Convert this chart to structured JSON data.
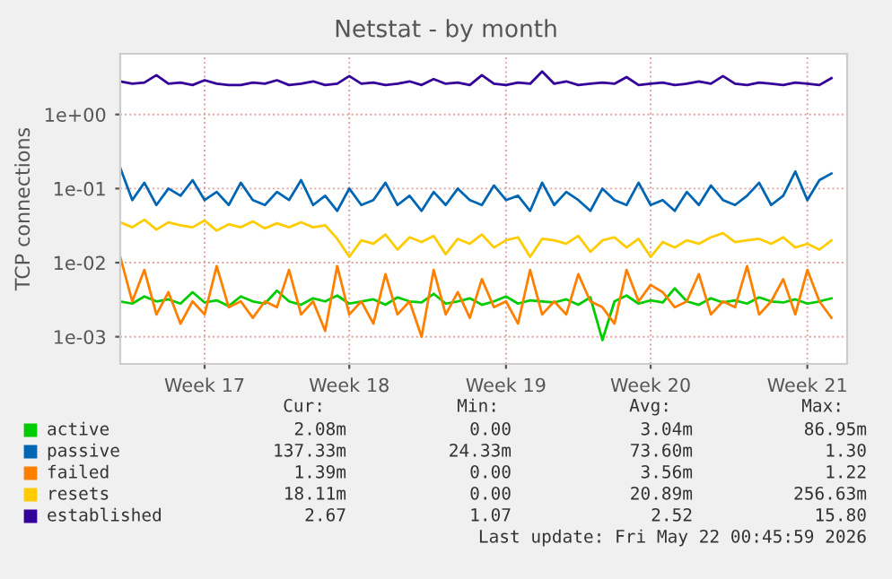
{
  "chart_data": {
    "type": "line",
    "title": "Netstat - by month",
    "ylabel": "TCP connections",
    "log": "y",
    "categories": [
      null,
      null,
      null,
      null,
      null,
      null,
      null,
      "Week 17",
      null,
      null,
      null,
      null,
      null,
      null,
      null,
      null,
      null,
      null,
      null,
      "Week 18",
      null,
      null,
      null,
      null,
      null,
      null,
      null,
      null,
      null,
      null,
      null,
      null,
      "Week 19",
      null,
      null,
      null,
      null,
      null,
      null,
      null,
      null,
      null,
      null,
      null,
      "Week 20",
      null,
      null,
      null,
      null,
      null,
      null,
      null,
      null,
      null,
      null,
      null,
      null,
      "Week 21",
      null,
      null
    ],
    "ylim": [
      0.00043,
      6.6
    ],
    "yticks": [
      {
        "value": 0.001,
        "label": "1e-03"
      },
      {
        "value": 0.01,
        "label": "1e-02"
      },
      {
        "value": 0.1,
        "label": "1e-01"
      },
      {
        "value": 1,
        "label": "1e+00"
      }
    ],
    "grid": true,
    "legend": "bottom",
    "series": [
      {
        "name": "active",
        "color": "#00cc00",
        "values": [
          0.003,
          0.0028,
          0.0035,
          0.003,
          0.0032,
          0.0028,
          0.004,
          0.0029,
          0.0031,
          0.0026,
          0.0035,
          0.003,
          0.0028,
          0.0042,
          0.003,
          0.0027,
          0.0033,
          0.003,
          0.0036,
          0.0028,
          0.003,
          0.0032,
          0.0027,
          0.0034,
          0.003,
          0.0029,
          0.0038,
          0.0028,
          0.003,
          0.0033,
          0.0027,
          0.003,
          0.0035,
          0.0028,
          0.0031,
          0.003,
          0.0029,
          0.0032,
          0.0027,
          0.0034,
          0.0009,
          0.003,
          0.0036,
          0.0028,
          0.0031,
          0.0029,
          0.0045,
          0.003,
          0.0027,
          0.0033,
          0.0029,
          0.0031,
          0.0028,
          0.0034,
          0.003,
          0.0029,
          0.0032,
          0.0028,
          0.003,
          0.0033
        ]
      },
      {
        "name": "passive",
        "color": "#0066b3",
        "values": [
          0.19,
          0.07,
          0.12,
          0.06,
          0.1,
          0.08,
          0.13,
          0.07,
          0.09,
          0.06,
          0.12,
          0.07,
          0.06,
          0.09,
          0.07,
          0.13,
          0.06,
          0.08,
          0.05,
          0.1,
          0.06,
          0.07,
          0.12,
          0.06,
          0.08,
          0.05,
          0.09,
          0.06,
          0.1,
          0.07,
          0.06,
          0.11,
          0.07,
          0.08,
          0.05,
          0.12,
          0.06,
          0.09,
          0.07,
          0.05,
          0.1,
          0.07,
          0.06,
          0.12,
          0.06,
          0.07,
          0.05,
          0.09,
          0.06,
          0.11,
          0.07,
          0.06,
          0.08,
          0.12,
          0.06,
          0.08,
          0.17,
          0.07,
          0.13,
          0.16
        ]
      },
      {
        "name": "failed",
        "color": "#ff8000",
        "values": [
          0.012,
          0.003,
          0.008,
          0.002,
          0.004,
          0.0015,
          0.003,
          0.002,
          0.009,
          0.0025,
          0.003,
          0.0018,
          0.003,
          0.0025,
          0.008,
          0.002,
          0.003,
          0.0012,
          0.009,
          0.002,
          0.003,
          0.0015,
          0.007,
          0.002,
          0.003,
          0.001,
          0.008,
          0.002,
          0.004,
          0.0018,
          0.006,
          0.0025,
          0.003,
          0.0015,
          0.008,
          0.002,
          0.003,
          0.002,
          0.007,
          0.003,
          0.0025,
          0.0015,
          0.008,
          0.003,
          0.005,
          0.004,
          0.0025,
          0.003,
          0.007,
          0.002,
          0.003,
          0.0025,
          0.009,
          0.002,
          0.003,
          0.006,
          0.002,
          0.008,
          0.003,
          0.0018
        ]
      },
      {
        "name": "resets",
        "color": "#ffcc00",
        "values": [
          0.035,
          0.03,
          0.038,
          0.028,
          0.035,
          0.032,
          0.03,
          0.037,
          0.027,
          0.033,
          0.03,
          0.036,
          0.029,
          0.034,
          0.03,
          0.035,
          0.03,
          0.032,
          0.021,
          0.012,
          0.02,
          0.018,
          0.024,
          0.015,
          0.022,
          0.019,
          0.023,
          0.013,
          0.021,
          0.018,
          0.024,
          0.016,
          0.02,
          0.022,
          0.012,
          0.021,
          0.02,
          0.018,
          0.023,
          0.014,
          0.02,
          0.022,
          0.016,
          0.021,
          0.012,
          0.019,
          0.016,
          0.02,
          0.018,
          0.022,
          0.025,
          0.019,
          0.02,
          0.021,
          0.018,
          0.022,
          0.016,
          0.018,
          0.015,
          0.02
        ]
      },
      {
        "name": "established",
        "color": "#330099",
        "values": [
          2.8,
          2.6,
          2.7,
          3.4,
          2.6,
          2.7,
          2.5,
          2.9,
          2.6,
          2.5,
          2.5,
          2.7,
          2.6,
          2.9,
          2.5,
          2.6,
          2.8,
          2.5,
          2.6,
          3.3,
          2.6,
          2.7,
          2.5,
          2.6,
          2.8,
          2.5,
          3.0,
          2.6,
          2.7,
          2.5,
          3.4,
          2.6,
          2.5,
          2.7,
          2.6,
          3.8,
          2.6,
          2.8,
          2.5,
          2.6,
          2.7,
          2.6,
          3.2,
          2.5,
          2.6,
          2.7,
          2.5,
          2.6,
          2.8,
          2.6,
          3.3,
          2.6,
          2.5,
          2.7,
          2.6,
          2.5,
          2.7,
          2.6,
          2.5,
          3.1
        ]
      }
    ],
    "annotations": [
      "Cur:",
      "Min:",
      "Avg:",
      "Max:",
      "2.08m",
      "0.00",
      "3.04m",
      "86.95m",
      "137.33m",
      "24.33m",
      "73.60m",
      "1.30",
      "1.39m",
      "0.00",
      "3.56m",
      "1.22",
      "18.11m",
      "0.00",
      "20.89m",
      "256.63m",
      "2.67",
      "1.07",
      "2.52",
      "15.80",
      "Last update: Fri May 22 00:45:59 2026"
    ]
  }
}
